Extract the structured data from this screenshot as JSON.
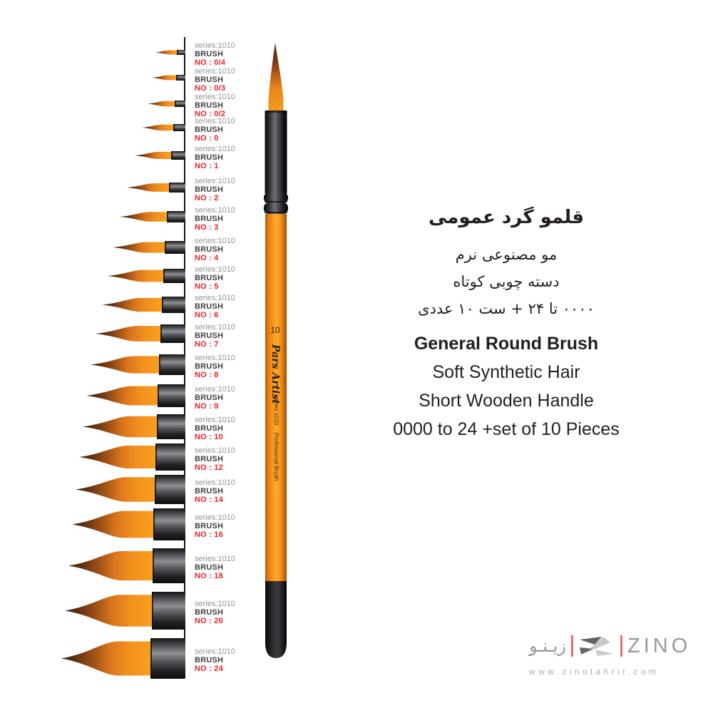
{
  "product": {
    "fa": {
      "title": "قلمو گرد عمومی",
      "line2": "مو مصنوعی نرم",
      "line3": "دسته چوبی کوتاه",
      "line4": "۰۰۰۰ تا ۲۴ + ست ۱۰ عددی"
    },
    "en": {
      "title": "General Round Brush",
      "line2": "Soft Synthetic Hair",
      "line3": "Short Wooden Handle",
      "line4": "0000 to 24 +set of 10 Pieces"
    }
  },
  "brush_list": {
    "series_label": "series:1010",
    "type_label": "BRUSH",
    "items": [
      {
        "size": "0/4",
        "no_label": "NO : 0/4"
      },
      {
        "size": "0/3",
        "no_label": "NO : 0/3"
      },
      {
        "size": "0/2",
        "no_label": "NO : 0/2"
      },
      {
        "size": "0",
        "no_label": "NO : 0"
      },
      {
        "size": "1",
        "no_label": "NO : 1"
      },
      {
        "size": "2",
        "no_label": "NO : 2"
      },
      {
        "size": "3",
        "no_label": "NO : 3"
      },
      {
        "size": "4",
        "no_label": "NO : 4"
      },
      {
        "size": "5",
        "no_label": "NO : 5"
      },
      {
        "size": "6",
        "no_label": "NO : 6"
      },
      {
        "size": "7",
        "no_label": "NO : 7"
      },
      {
        "size": "8",
        "no_label": "NO : 8"
      },
      {
        "size": "9",
        "no_label": "NO : 9"
      },
      {
        "size": "10",
        "no_label": "NO : 10"
      },
      {
        "size": "12",
        "no_label": "NO : 12"
      },
      {
        "size": "14",
        "no_label": "NO : 14"
      },
      {
        "size": "16",
        "no_label": "NO : 16"
      },
      {
        "size": "18",
        "no_label": "NO : 18"
      },
      {
        "size": "20",
        "no_label": "NO : 20"
      },
      {
        "size": "24",
        "no_label": "NO : 24"
      }
    ]
  },
  "featured_brush": {
    "size_mark": "10",
    "brand": "Pars Artist",
    "series_text": "series:1010",
    "type_text": "Professional Brush"
  },
  "footer": {
    "brand_fa": "زیـنـو",
    "brand_en": "ZINO",
    "website": "www.zinotahrir.com",
    "z_logo_icon": "zino-z-logo"
  },
  "colors": {
    "accent_orange": "#F7941D",
    "label_red": "#ED2024",
    "label_gray": "#919396",
    "label_dark": "#414042",
    "logo_red": "#F16A6A",
    "logo_gray": "#97999C"
  }
}
